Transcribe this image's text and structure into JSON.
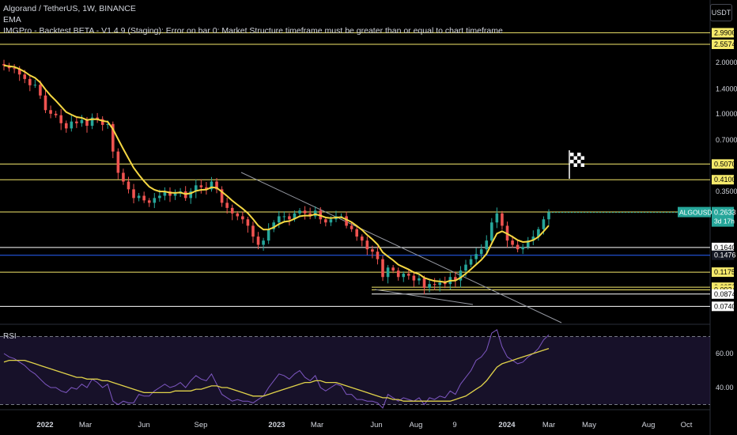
{
  "header": {
    "symbol": "Algorand / TetherUS, 1W, BINANCE",
    "indicator_ema": "EMA",
    "indicator_imgpro": "IMGPro - Backtest BETA - V1.4.9 (Staging): Error on bar 0: Market Structure timeframe must be greater than or equal to chart timeframe",
    "currency_button": "USDT"
  },
  "colors": {
    "background": "#000000",
    "up_candle": "#26a69a",
    "down_candle": "#ef5350",
    "ema": "#f5d742",
    "yellow_level": "#f5e96b",
    "white_level": "#ffffff",
    "blue_level": "#2962ff",
    "trendline": "#9598a1",
    "rsi_line": "#7e57c2",
    "rsi_ma": "#e0d24a",
    "rsi_band": "#2a1f4a"
  },
  "chart_data": [
    {
      "type": "candlestick",
      "title": "Algorand / TetherUS, 1W, BINANCE",
      "price_scale": "log",
      "y_tick_labels": [
        "2.0000",
        "1.4000",
        "1.0000",
        "0.7000",
        "0.3500"
      ],
      "x_tick_labels": [
        "2022",
        "Mar",
        "Jun",
        "Sep",
        "2023",
        "Mar",
        "Jun",
        "Aug",
        "9",
        "2024",
        "Mar",
        "May",
        "Aug",
        "Oct"
      ],
      "price_levels": [
        {
          "label": "2.9900",
          "price": 2.99,
          "style": "yellow"
        },
        {
          "label": "2.5574",
          "price": 2.5574,
          "style": "yellow"
        },
        {
          "label": "0.5070",
          "price": 0.507,
          "style": "yellow"
        },
        {
          "label": "0.4100",
          "price": 0.41,
          "style": "yellow"
        },
        {
          "label": "0.2650",
          "price": 0.265,
          "style": "yellow"
        },
        {
          "label": "0.1640",
          "price": 0.164,
          "style": "white"
        },
        {
          "label": "0.1476",
          "price": 0.1476,
          "style": "blue"
        },
        {
          "label": "0.1175",
          "price": 0.1175,
          "style": "yellow"
        },
        {
          "label": "0.0958",
          "price": 0.0958,
          "style": "yellow"
        },
        {
          "label": "0.0924",
          "price": 0.0924,
          "style": "yellow"
        },
        {
          "label": "0.0874",
          "price": 0.0874,
          "style": "white"
        },
        {
          "label": "0.0740",
          "price": 0.074,
          "style": "white"
        }
      ],
      "current_price": {
        "symbol": "ALGOUSDT",
        "price_label": "0.2633",
        "price": 0.2633,
        "countdown": "3d 17h"
      },
      "weekly_closes": [
        1.92,
        1.85,
        1.84,
        1.7,
        1.6,
        1.47,
        1.48,
        1.28,
        1.05,
        1.0,
        0.98,
        0.88,
        0.82,
        0.9,
        0.88,
        0.92,
        0.85,
        0.95,
        0.93,
        0.86,
        0.87,
        0.6,
        0.45,
        0.4,
        0.36,
        0.32,
        0.33,
        0.31,
        0.3,
        0.32,
        0.33,
        0.35,
        0.33,
        0.34,
        0.35,
        0.32,
        0.35,
        0.38,
        0.37,
        0.36,
        0.4,
        0.36,
        0.3,
        0.28,
        0.26,
        0.25,
        0.24,
        0.22,
        0.19,
        0.17,
        0.18,
        0.21,
        0.23,
        0.25,
        0.25,
        0.24,
        0.26,
        0.27,
        0.26,
        0.25,
        0.27,
        0.24,
        0.23,
        0.24,
        0.25,
        0.25,
        0.22,
        0.21,
        0.19,
        0.18,
        0.16,
        0.155,
        0.14,
        0.11,
        0.125,
        0.12,
        0.11,
        0.115,
        0.112,
        0.105,
        0.108,
        0.095,
        0.1,
        0.099,
        0.102,
        0.1,
        0.11,
        0.105,
        0.12,
        0.13,
        0.14,
        0.15,
        0.16,
        0.18,
        0.23,
        0.26,
        0.22,
        0.18,
        0.17,
        0.16,
        0.165,
        0.18,
        0.19,
        0.21,
        0.24,
        0.2633
      ],
      "rsi": {
        "label": "RSI",
        "tick_labels": [
          "60.00",
          "40.00"
        ],
        "band": [
          30,
          70
        ],
        "values": [
          60,
          58,
          57,
          55,
          53,
          50,
          48,
          45,
          42,
          40,
          40,
          38,
          37,
          40,
          39,
          42,
          40,
          45,
          43,
          40,
          42,
          32,
          30,
          32,
          31,
          31,
          36,
          35,
          35,
          38,
          40,
          42,
          40,
          41,
          43,
          40,
          44,
          47,
          45,
          44,
          48,
          42,
          36,
          34,
          32,
          33,
          32,
          32,
          31,
          33,
          35,
          40,
          44,
          48,
          47,
          45,
          48,
          50,
          46,
          44,
          47,
          40,
          38,
          40,
          42,
          41,
          36,
          36,
          33,
          33,
          32,
          32,
          31,
          28,
          36,
          34,
          32,
          34,
          33,
          32,
          34,
          30,
          34,
          33,
          35,
          34,
          38,
          36,
          42,
          46,
          50,
          56,
          58,
          62,
          72,
          74,
          64,
          58,
          56,
          54,
          55,
          58,
          60,
          63,
          68,
          71
        ],
        "ma_values": [
          55,
          56,
          56,
          56,
          56,
          55,
          54,
          53,
          52,
          51,
          50,
          49,
          48,
          47,
          46,
          46,
          45,
          45,
          45,
          44,
          44,
          43,
          42,
          41,
          40,
          39,
          38,
          37,
          37,
          37,
          37,
          37,
          37,
          38,
          38,
          38,
          38,
          39,
          39,
          40,
          41,
          41,
          40,
          40,
          39,
          38,
          37,
          36,
          35,
          35,
          35,
          36,
          37,
          38,
          39,
          40,
          41,
          42,
          43,
          43,
          44,
          44,
          43,
          43,
          43,
          42,
          41,
          40,
          39,
          38,
          37,
          36,
          35,
          34,
          34,
          33,
          33,
          32,
          32,
          32,
          32,
          32,
          32,
          32,
          32,
          32,
          32,
          33,
          34,
          35,
          37,
          39,
          41,
          44,
          48,
          52,
          54,
          55,
          56,
          57,
          58,
          59,
          60,
          61,
          62,
          63
        ]
      }
    }
  ]
}
